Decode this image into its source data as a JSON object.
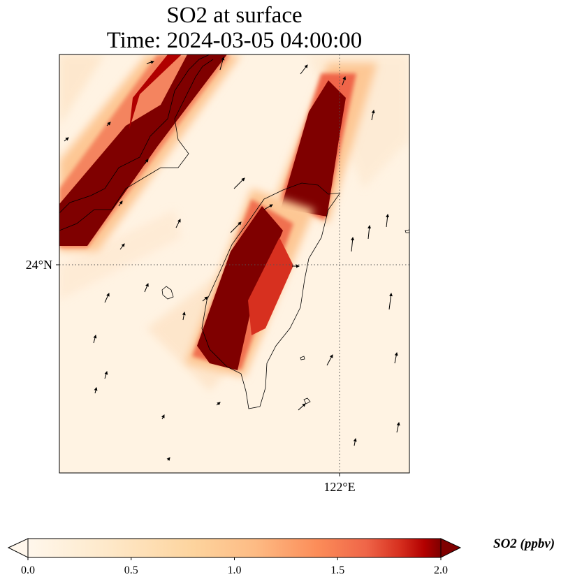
{
  "title": {
    "line1": "SO2 at surface",
    "line2": "Time: 2024-03-05 04:00:00"
  },
  "map": {
    "gridlines": {
      "lat_label": "24°N",
      "lon_label": "122°E",
      "style": "dotted"
    },
    "colormap": "OrRd",
    "plumes": [
      {
        "name": "northwest-plume",
        "peak_ppbv": 2.0
      },
      {
        "name": "central-plume",
        "peak_ppbv": 2.0
      },
      {
        "name": "northeast-plume",
        "peak_ppbv": 2.0
      }
    ],
    "wind_vectors": "present"
  },
  "colorbar": {
    "label": "SO2 (ppbv)",
    "ticks": [
      "0.0",
      "0.5",
      "1.0",
      "1.5",
      "2.0"
    ],
    "min": 0.0,
    "max": 2.0,
    "extend": "both"
  },
  "colors": {
    "low": "#fff7ec",
    "mid": "#fdbb84",
    "high": "#d7301f",
    "max": "#7f0000"
  }
}
